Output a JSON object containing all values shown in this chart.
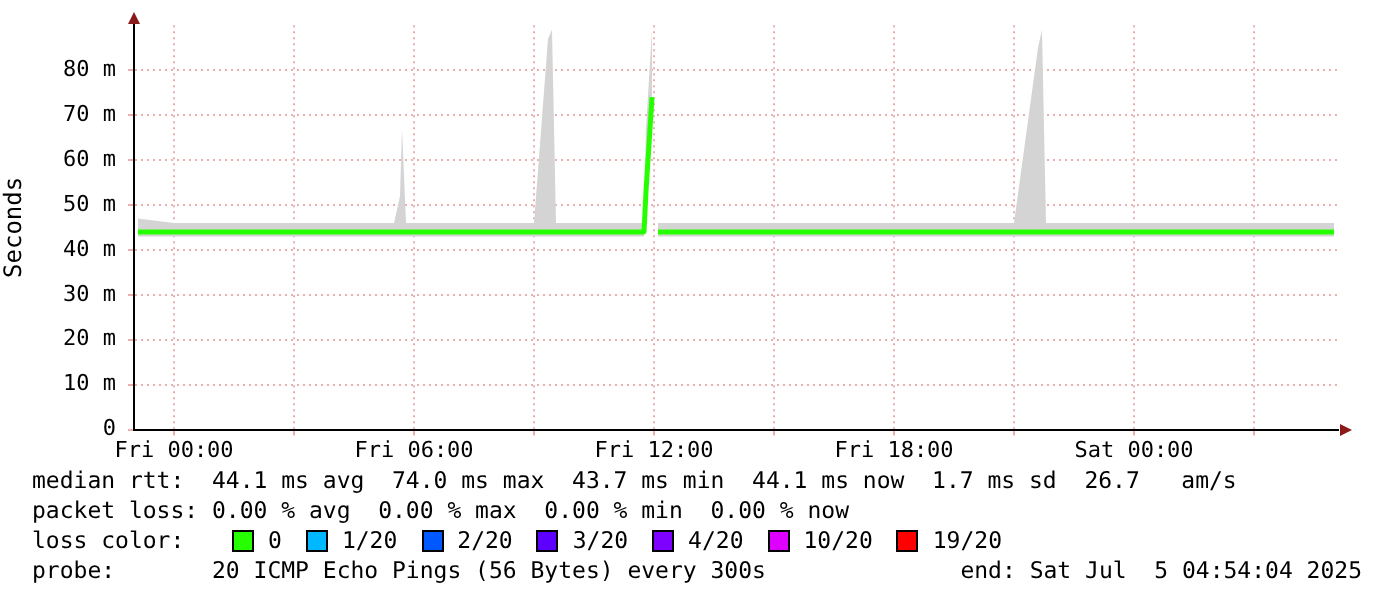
{
  "chart_data": {
    "type": "line",
    "ylabel": "Seconds",
    "legend_title": "loss color:",
    "legend": "bottom",
    "grid": true,
    "marker": "none",
    "line_style": "solid",
    "xlim": [
      "2025-07-03T23:00",
      "2025-07-05T05:06"
    ],
    "xticks": [
      {
        "value": "2025-07-04T00:00",
        "label": "Fri 00:00"
      },
      {
        "value": "2025-07-04T03:00",
        "label": null
      },
      {
        "value": "2025-07-04T06:00",
        "label": "Fri 06:00"
      },
      {
        "value": "2025-07-04T09:00",
        "label": null
      },
      {
        "value": "2025-07-04T12:00",
        "label": "Fri 12:00"
      },
      {
        "value": "2025-07-04T15:00",
        "label": null
      },
      {
        "value": "2025-07-04T18:00",
        "label": "Fri 18:00"
      },
      {
        "value": "2025-07-04T21:00",
        "label": null
      },
      {
        "value": "2025-07-05T00:00",
        "label": "Sat 00:00"
      },
      {
        "value": "2025-07-05T03:00",
        "label": null
      }
    ],
    "ylim": [
      0,
      90
    ],
    "yticks": [
      0,
      {
        "value": 10,
        "label": "10 m"
      },
      {
        "value": 20,
        "label": "20 m"
      },
      {
        "value": 30,
        "label": "30 m"
      },
      {
        "value": 40,
        "label": "40 m"
      },
      {
        "value": 50,
        "label": "50 m"
      },
      {
        "value": 60,
        "label": "60 m"
      },
      {
        "value": 70,
        "label": "70 m"
      },
      {
        "value": 80,
        "label": "80 m"
      }
    ],
    "series": [
      {
        "name": "0",
        "color": "#26ff00",
        "x": [
          "2025-07-03T23:06",
          "2025-07-04T00:00",
          "2025-07-04T01:00",
          "2025-07-04T02:00",
          "2025-07-04T03:00",
          "2025-07-04T04:00",
          "2025-07-04T05:00",
          "2025-07-04T05:30",
          "2025-07-04T05:39",
          "2025-07-04T05:42",
          "2025-07-04T05:48",
          "2025-07-04T06:00",
          "2025-07-04T07:00",
          "2025-07-04T08:00",
          "2025-07-04T09:00",
          "2025-07-04T09:21",
          "2025-07-04T09:27",
          "2025-07-04T09:33",
          "2025-07-04T10:00",
          "2025-07-04T11:00",
          "2025-07-04T11:45",
          "2025-07-04T11:48",
          "2025-07-04T11:57",
          "2025-07-04T12:00",
          "2025-07-04T12:06",
          "2025-07-04T13:00",
          "2025-07-04T14:00",
          "2025-07-04T15:00",
          "2025-07-04T16:00",
          "2025-07-04T17:00",
          "2025-07-04T18:00",
          "2025-07-04T19:00",
          "2025-07-04T20:00",
          "2025-07-04T21:00",
          "2025-07-04T21:36",
          "2025-07-04T21:42",
          "2025-07-04T21:48",
          "2025-07-04T22:00",
          "2025-07-04T23:00",
          "2025-07-05T00:00",
          "2025-07-05T01:00",
          "2025-07-05T02:00",
          "2025-07-05T03:00",
          "2025-07-05T04:00",
          "2025-07-05T05:00"
        ],
        "values": [
          44,
          44,
          44,
          44,
          44,
          44,
          44,
          44,
          44,
          44,
          44,
          44,
          44,
          44,
          44,
          44,
          44,
          44,
          44,
          44,
          44,
          53,
          74,
          null,
          44,
          44,
          44,
          44,
          44,
          44,
          44,
          44,
          44,
          44,
          44,
          44,
          44,
          44,
          44,
          44,
          44,
          44,
          44,
          44,
          44
        ],
        "lower": [
          43,
          43,
          43,
          43,
          43,
          43,
          43,
          43,
          43,
          43,
          43,
          43,
          43,
          43,
          43,
          43,
          43,
          43,
          43,
          43,
          43,
          48,
          66,
          null,
          43,
          43,
          43,
          43,
          43,
          43,
          43,
          43,
          43,
          43,
          43,
          43,
          43,
          43,
          43,
          43,
          43,
          43,
          43,
          43,
          43
        ],
        "upper": [
          47,
          46,
          46,
          46,
          46,
          46,
          46,
          46,
          52,
          67,
          46,
          46,
          46,
          46,
          46,
          87,
          89,
          46,
          46,
          46,
          46,
          67,
          89,
          null,
          46,
          46,
          46,
          46,
          46,
          46,
          46,
          46,
          46,
          46,
          85,
          89,
          46,
          46,
          46,
          46,
          46,
          46,
          46,
          46,
          46
        ]
      },
      {
        "name": "1/20",
        "color": "#00b8ff"
      },
      {
        "name": "2/20",
        "color": "#0059ff"
      },
      {
        "name": "3/20",
        "color": "#5e00ff"
      },
      {
        "name": "4/20",
        "color": "#7e00ff"
      },
      {
        "name": "10/20",
        "color": "#dd00ff"
      },
      {
        "name": "19/20",
        "color": "#ff0000"
      }
    ],
    "annotations": [
      "median rtt:  44.1 ms avg  74.0 ms max  43.7 ms min  44.1 ms now  1.7 ms sd  26.7   am/s",
      "packet loss: 0.00 % avg  0.00 % max  0.00 % min  0.00 % now",
      "probe:       20 ICMP Echo Pings (56 Bytes) every 300s",
      "end: Sat Jul  5 04:54:04 2025"
    ]
  }
}
